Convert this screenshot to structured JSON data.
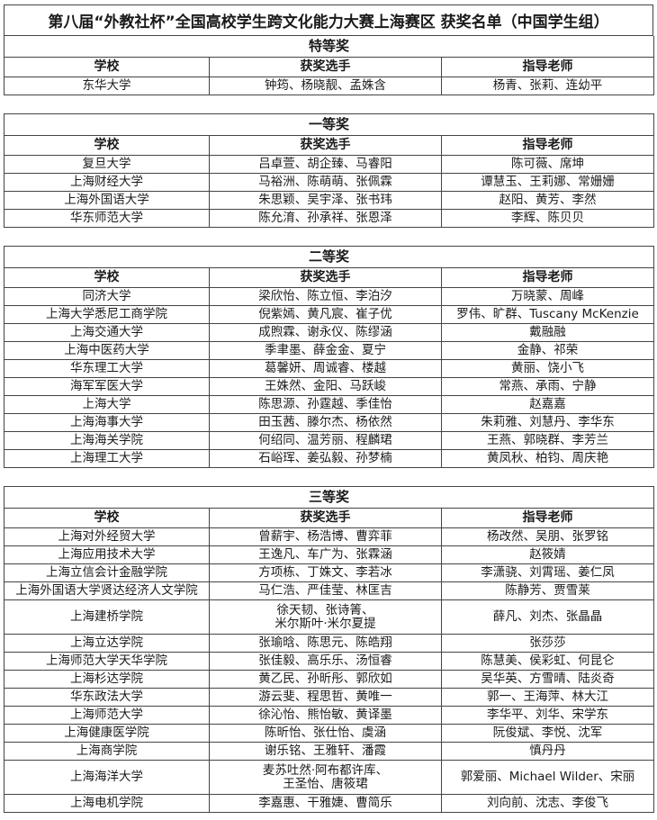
{
  "title": "第八届“外教社杯”全国高校学生跨文化能力大赛上海赛区 获奖名单（中国学生组）",
  "headers": [
    "学校",
    "获奖选手",
    "指导老师"
  ],
  "sections": [
    {
      "title": "特等奖",
      "rows": [
        {
          "school": "东华大学",
          "students": [
            "钟筠、杨晓靓、孟姝含"
          ],
          "teachers": "杨青、张莉、连幼平"
        }
      ]
    },
    {
      "title": "一等奖",
      "rows": [
        {
          "school": "复旦大学",
          "students": [
            "吕卓萱、胡企臻、马睿阳"
          ],
          "teachers": "陈可薇、席坤"
        },
        {
          "school": "上海财经大学",
          "students": [
            "马裕洲、陈萌萌、张佩霖"
          ],
          "teachers": "谭慧玉、王莉娜、常姗姗"
        },
        {
          "school": "上海外国语大学",
          "students": [
            "朱思颖、吴宇泽、张书玮"
          ],
          "teachers": "赵阳、黄芳、李然"
        },
        {
          "school": "华东师范大学",
          "students": [
            "陈允淯、孙承祥、张恩泽"
          ],
          "teachers": "李辉、陈贝贝"
        }
      ]
    },
    {
      "title": "二等奖",
      "rows": [
        {
          "school": "同济大学",
          "students": [
            "梁欣怡、陈立恒、李泊汐"
          ],
          "teachers": "万晓蒙、周峰"
        },
        {
          "school": "上海大学悉尼工商学院",
          "students": [
            "倪紫嫣、黄凡宸、崔子优"
          ],
          "teachers": "罗伟、旷群、Tuscany McKenzie"
        },
        {
          "school": "上海交通大学",
          "students": [
            "成煦霖、谢永仪、陈缪涵"
          ],
          "teachers": "戴融融"
        },
        {
          "school": "上海中医药大学",
          "students": [
            "季聿墨、薛金金、夏宁"
          ],
          "teachers": "金静、祁荣"
        },
        {
          "school": "华东理工大学",
          "students": [
            "葛馨妍、周诚睿、楼越"
          ],
          "teachers": "黄丽、饶小飞"
        },
        {
          "school": "海军军医大学",
          "students": [
            "王姝然、金阳、马跃峻"
          ],
          "teachers": "常燕、承雨、宁静"
        },
        {
          "school": "上海大学",
          "students": [
            "陈思源、孙霆越、季佳怡"
          ],
          "teachers": "赵嘉嘉"
        },
        {
          "school": "上海海事大学",
          "students": [
            "田玉茜、滕尔杰、杨依然"
          ],
          "teachers": "朱莉雅、刘慧丹、李华东"
        },
        {
          "school": "上海海关学院",
          "students": [
            "何绍同、温芳丽、程麟珺"
          ],
          "teachers": "王燕、郭晓群、李芳兰"
        },
        {
          "school": "上海理工大学",
          "students": [
            "石峪珲、姜弘毅、孙梦楠"
          ],
          "teachers": "黄凤秋、柏钧、周庆艳"
        }
      ]
    },
    {
      "title": "三等奖",
      "rows": [
        {
          "school": "上海对外经贸大学",
          "students": [
            "曾薪宇、杨浩博、曹弈菲"
          ],
          "teachers": "杨改然、吴朋、张罗铭"
        },
        {
          "school": "上海应用技术大学",
          "students": [
            "王逸凡、车广为、张霖涵"
          ],
          "teachers": "赵筱婧"
        },
        {
          "school": "上海立信会计金融学院",
          "students": [
            "方项栋、丁姝文、李若冰"
          ],
          "teachers": "李潇骁、刘霄瑶、姜仁凤"
        },
        {
          "school": "上海外国语大学贤达经济人文学院",
          "students": [
            "马仁浩、严佳莹、林匡吉"
          ],
          "teachers": "陈静芳、贾雪莱"
        },
        {
          "school": "上海建桥学院",
          "students": [
            "徐天韧、张诗箐、",
            "米尔斯叶·米尔夏提"
          ],
          "teachers": "薛凡、刘杰、张晶晶"
        },
        {
          "school": "上海立达学院",
          "students": [
            "张瑜晗、陈思元、陈皓翔"
          ],
          "teachers": "张莎莎"
        },
        {
          "school": "上海师范大学天华学院",
          "students": [
            "张佳毅、高乐乐、汤恒睿"
          ],
          "teachers": "陈慧美、侯彩虹、何昆仑"
        },
        {
          "school": "上海杉达学院",
          "students": [
            "黄乙民、孙昕彤、郭欣如"
          ],
          "teachers": "吴华英、方雪晴、陆炎奇"
        },
        {
          "school": "华东政法大学",
          "students": [
            "游云斐、程思哲、黄唯一"
          ],
          "teachers": "郭一、王海萍、林大江"
        },
        {
          "school": "上海师范大学",
          "students": [
            "徐沁怡、熊怡敏、黄译墨"
          ],
          "teachers": "李华平、刘华、宋学东"
        },
        {
          "school": "上海健康医学院",
          "students": [
            "陈昕怡、张仕怡、虞涵"
          ],
          "teachers": "阮俊斌、李悦、沈军"
        },
        {
          "school": "上海商学院",
          "students": [
            "谢乐铭、王雅轩、潘霞"
          ],
          "teachers": "慎丹丹"
        },
        {
          "school": "上海海洋大学",
          "students": [
            "麦苏吐然·阿布都许库、",
            "王圣怡、唐筱珺"
          ],
          "teachers": "郭爱丽、Michael Wilder、宋丽"
        },
        {
          "school": "上海电机学院",
          "students": [
            "李嘉惠、干雅婕、曹简乐"
          ],
          "teachers": "刘向前、沈志、李俊飞"
        }
      ]
    }
  ]
}
